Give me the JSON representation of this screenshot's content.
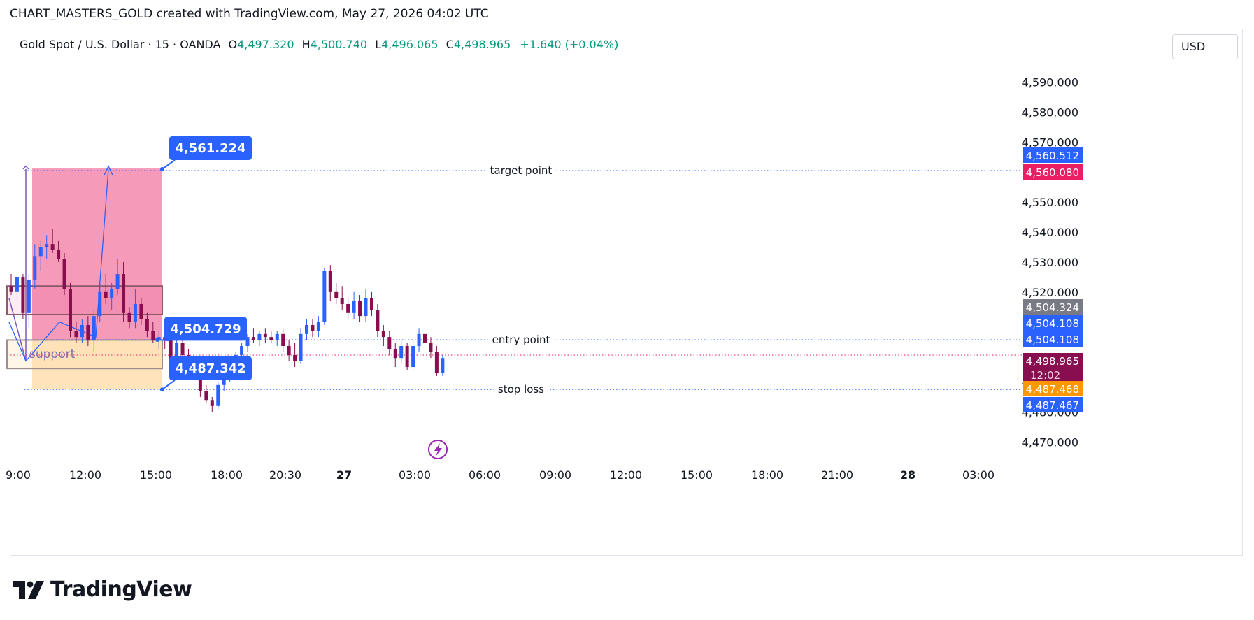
{
  "caption": "CHART_MASTERS_GOLD created with TradingView.com, May 27, 2026 04:02 UTC",
  "legend": {
    "symbol": "Gold Spot / U.S. Dollar · 15 · OANDA",
    "open_label": "O",
    "open": "4,497.320",
    "high_label": "H",
    "high": "4,500.740",
    "low_label": "L",
    "low": "4,496.065",
    "close_label": "C",
    "close": "4,498.965",
    "change": "+1.640 (+0.04%)"
  },
  "currency": "USD",
  "chart_data": {
    "type": "candlestick",
    "y_axis_ticks": [
      "4,590.000",
      "4,580.000",
      "4,570.000",
      "4,550.000",
      "4,540.000",
      "4,530.000",
      "4,520.000",
      "4,470.000"
    ],
    "y_axis_tick_values": [
      4590,
      4580,
      4570,
      4550,
      4540,
      4530,
      4520,
      4470
    ],
    "x_axis_ticks": [
      "9:00",
      "12:00",
      "15:00",
      "18:00",
      "20:30",
      "27",
      "03:00",
      "06:00",
      "09:00",
      "12:00",
      "15:00",
      "18:00",
      "21:00",
      "28",
      "03:00"
    ],
    "price_tags": [
      {
        "label": "4,560.512",
        "value": 4560.512,
        "color": "#2962ff"
      },
      {
        "label": "4,560.080",
        "value": 4560.08,
        "color": "#e91e63"
      },
      {
        "label": "4,504.324",
        "value": 4504.324,
        "color": "#787b86"
      },
      {
        "label": "4,504.108",
        "value": 4504.108,
        "color": "#2962ff"
      },
      {
        "label": "4,504.108",
        "value": 4504.108,
        "color": "#2962ff"
      },
      {
        "label": "4,498.965",
        "value": 4498.965,
        "color": "#880e4f",
        "countdown": "12:02"
      },
      {
        "label": "4,487.468",
        "value": 4487.468,
        "color": "#ff9800"
      },
      {
        "label": "4,487.467",
        "value": 4487.467,
        "color": "#2962ff"
      }
    ],
    "callouts": [
      {
        "label": "4,561.224",
        "value": 4561.224
      },
      {
        "label": "4,504.729",
        "value": 4504.729
      },
      {
        "label": "4,487.342",
        "value": 4487.342
      }
    ],
    "level_lines": [
      {
        "label": "target point",
        "value": 4560.5
      },
      {
        "label": "entry point",
        "value": 4504.1
      },
      {
        "label": "stop loss",
        "value": 4487.5
      }
    ],
    "zone_label": "support",
    "candles": [
      {
        "o": 4522,
        "h": 4526,
        "l": 4519,
        "c": 4520
      },
      {
        "o": 4520,
        "h": 4526,
        "l": 4517,
        "c": 4525
      },
      {
        "o": 4525,
        "h": 4526,
        "l": 4511,
        "c": 4513
      },
      {
        "o": 4513,
        "h": 4526,
        "l": 4508,
        "c": 4524
      },
      {
        "o": 4524,
        "h": 4536,
        "l": 4521,
        "c": 4532
      },
      {
        "o": 4532,
        "h": 4537,
        "l": 4527,
        "c": 4535
      },
      {
        "o": 4535,
        "h": 4539,
        "l": 4531,
        "c": 4536
      },
      {
        "o": 4536,
        "h": 4541,
        "l": 4533,
        "c": 4534
      },
      {
        "o": 4534,
        "h": 4537,
        "l": 4530,
        "c": 4531
      },
      {
        "o": 4531,
        "h": 4533,
        "l": 4519,
        "c": 4521
      },
      {
        "o": 4521,
        "h": 4523,
        "l": 4505,
        "c": 4507
      },
      {
        "o": 4507,
        "h": 4510,
        "l": 4503,
        "c": 4505
      },
      {
        "o": 4505,
        "h": 4511,
        "l": 4503,
        "c": 4509
      },
      {
        "o": 4509,
        "h": 4512,
        "l": 4502,
        "c": 4504
      },
      {
        "o": 4504,
        "h": 4514,
        "l": 4500,
        "c": 4512
      },
      {
        "o": 4512,
        "h": 4523,
        "l": 4510,
        "c": 4520
      },
      {
        "o": 4520,
        "h": 4526,
        "l": 4516,
        "c": 4518
      },
      {
        "o": 4518,
        "h": 4523,
        "l": 4514,
        "c": 4521
      },
      {
        "o": 4521,
        "h": 4531,
        "l": 4519,
        "c": 4526
      },
      {
        "o": 4526,
        "h": 4530,
        "l": 4510,
        "c": 4513
      },
      {
        "o": 4513,
        "h": 4515,
        "l": 4508,
        "c": 4510
      },
      {
        "o": 4510,
        "h": 4521,
        "l": 4508,
        "c": 4516
      },
      {
        "o": 4516,
        "h": 4518,
        "l": 4509,
        "c": 4511
      },
      {
        "o": 4511,
        "h": 4513,
        "l": 4505,
        "c": 4507
      },
      {
        "o": 4507,
        "h": 4510,
        "l": 4503,
        "c": 4504
      },
      {
        "o": 4504,
        "h": 4507,
        "l": 4501,
        "c": 4505
      },
      {
        "o": 4505,
        "h": 4507,
        "l": 4501,
        "c": 4504
      },
      {
        "o": 4504,
        "h": 4506,
        "l": 4495,
        "c": 4497
      },
      {
        "o": 4497,
        "h": 4505,
        "l": 4495,
        "c": 4503
      },
      {
        "o": 4503,
        "h": 4506,
        "l": 4497,
        "c": 4499
      },
      {
        "o": 4499,
        "h": 4501,
        "l": 4493,
        "c": 4495
      },
      {
        "o": 4495,
        "h": 4497,
        "l": 4491,
        "c": 4492
      },
      {
        "o": 4492,
        "h": 4495,
        "l": 4485,
        "c": 4487
      },
      {
        "o": 4487,
        "h": 4489,
        "l": 4483,
        "c": 4484
      },
      {
        "o": 4484,
        "h": 4485,
        "l": 4480,
        "c": 4482
      },
      {
        "o": 4482,
        "h": 4490,
        "l": 4481,
        "c": 4489
      },
      {
        "o": 4489,
        "h": 4493,
        "l": 4487,
        "c": 4492
      },
      {
        "o": 4492,
        "h": 4497,
        "l": 4490,
        "c": 4496
      },
      {
        "o": 4496,
        "h": 4500,
        "l": 4494,
        "c": 4499
      },
      {
        "o": 4499,
        "h": 4503,
        "l": 4497,
        "c": 4502
      },
      {
        "o": 4502,
        "h": 4506,
        "l": 4500,
        "c": 4505
      },
      {
        "o": 4505,
        "h": 4508,
        "l": 4503,
        "c": 4504
      },
      {
        "o": 4504,
        "h": 4507,
        "l": 4502,
        "c": 4506
      },
      {
        "o": 4506,
        "h": 4508,
        "l": 4503,
        "c": 4505
      },
      {
        "o": 4505,
        "h": 4507,
        "l": 4503,
        "c": 4504
      },
      {
        "o": 4504,
        "h": 4507,
        "l": 4502,
        "c": 4506
      },
      {
        "o": 4506,
        "h": 4508,
        "l": 4500,
        "c": 4502
      },
      {
        "o": 4502,
        "h": 4504,
        "l": 4497,
        "c": 4499
      },
      {
        "o": 4499,
        "h": 4503,
        "l": 4495,
        "c": 4497
      },
      {
        "o": 4497,
        "h": 4508,
        "l": 4496,
        "c": 4506
      },
      {
        "o": 4506,
        "h": 4511,
        "l": 4504,
        "c": 4509
      },
      {
        "o": 4509,
        "h": 4511,
        "l": 4505,
        "c": 4507
      },
      {
        "o": 4507,
        "h": 4512,
        "l": 4505,
        "c": 4510
      },
      {
        "o": 4510,
        "h": 4528,
        "l": 4509,
        "c": 4527
      },
      {
        "o": 4527,
        "h": 4529,
        "l": 4517,
        "c": 4520
      },
      {
        "o": 4520,
        "h": 4523,
        "l": 4516,
        "c": 4518
      },
      {
        "o": 4518,
        "h": 4522,
        "l": 4514,
        "c": 4516
      },
      {
        "o": 4516,
        "h": 4518,
        "l": 4511,
        "c": 4513
      },
      {
        "o": 4513,
        "h": 4520,
        "l": 4511,
        "c": 4517
      },
      {
        "o": 4517,
        "h": 4519,
        "l": 4510,
        "c": 4512
      },
      {
        "o": 4512,
        "h": 4521,
        "l": 4510,
        "c": 4518
      },
      {
        "o": 4518,
        "h": 4520,
        "l": 4512,
        "c": 4514
      },
      {
        "o": 4514,
        "h": 4516,
        "l": 4505,
        "c": 4507
      },
      {
        "o": 4507,
        "h": 4509,
        "l": 4502,
        "c": 4505
      },
      {
        "o": 4505,
        "h": 4507,
        "l": 4499,
        "c": 4501
      },
      {
        "o": 4501,
        "h": 4503,
        "l": 4495,
        "c": 4498
      },
      {
        "o": 4498,
        "h": 4504,
        "l": 4496,
        "c": 4502
      },
      {
        "o": 4502,
        "h": 4503,
        "l": 4494,
        "c": 4495
      },
      {
        "o": 4495,
        "h": 4504,
        "l": 4494,
        "c": 4502
      },
      {
        "o": 4502,
        "h": 4508,
        "l": 4500,
        "c": 4506
      },
      {
        "o": 4506,
        "h": 4509,
        "l": 4501,
        "c": 4503
      },
      {
        "o": 4503,
        "h": 4505,
        "l": 4498,
        "c": 4500
      },
      {
        "o": 4500,
        "h": 4502,
        "l": 4492,
        "c": 4493
      },
      {
        "o": 4493,
        "h": 4499,
        "l": 4492,
        "c": 4498
      }
    ]
  }
}
